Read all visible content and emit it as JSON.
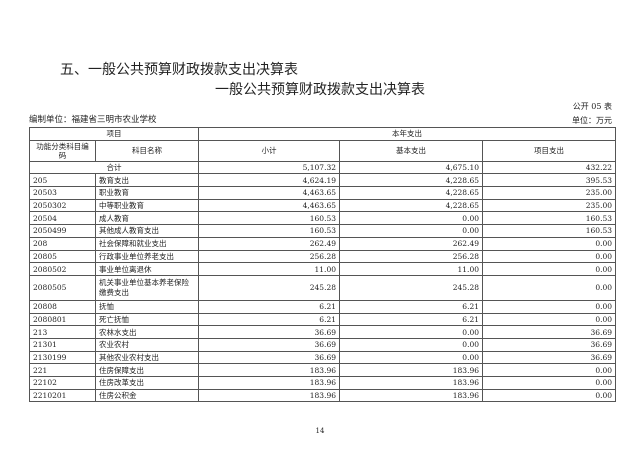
{
  "section_title": "五、一般公共预算财政拨款支出决算表",
  "table_title": "一般公共预算财政拨款支出决算表",
  "form_no": "公开 05 表",
  "org": "编制单位：福建省三明市农业学校",
  "unit": "单位：万元",
  "header": {
    "item": "项目",
    "current_year": "本年支出",
    "code": "功能分类科目编码",
    "name": "科目名称",
    "subtotal": "小计",
    "basic": "基本支出",
    "project": "项目支出"
  },
  "total": {
    "label": "合计",
    "subtotal": "5,107.32",
    "basic": "4,675.10",
    "project": "432.22"
  },
  "rows": [
    {
      "code": "205",
      "name": "教育支出",
      "subtotal": "4,624.19",
      "basic": "4,228.65",
      "project": "395.53"
    },
    {
      "code": "20503",
      "name": "职业教育",
      "subtotal": "4,463.65",
      "basic": "4,228.65",
      "project": "235.00"
    },
    {
      "code": "2050302",
      "name": "中等职业教育",
      "subtotal": "4,463.65",
      "basic": "4,228.65",
      "project": "235.00"
    },
    {
      "code": "20504",
      "name": "成人教育",
      "subtotal": "160.53",
      "basic": "0.00",
      "project": "160.53"
    },
    {
      "code": "2050499",
      "name": "其他成人教育支出",
      "subtotal": "160.53",
      "basic": "0.00",
      "project": "160.53"
    },
    {
      "code": "208",
      "name": "社会保障和就业支出",
      "subtotal": "262.49",
      "basic": "262.49",
      "project": "0.00"
    },
    {
      "code": "20805",
      "name": "行政事业单位养老支出",
      "subtotal": "256.28",
      "basic": "256.28",
      "project": "0.00"
    },
    {
      "code": "2080502",
      "name": "事业单位离退休",
      "subtotal": "11.00",
      "basic": "11.00",
      "project": "0.00"
    },
    {
      "code": "2080505",
      "name": "机关事业单位基本养老保险缴费支出",
      "subtotal": "245.28",
      "basic": "245.28",
      "project": "0.00"
    },
    {
      "code": "20808",
      "name": "抚恤",
      "subtotal": "6.21",
      "basic": "6.21",
      "project": "0.00"
    },
    {
      "code": "2080801",
      "name": "死亡抚恤",
      "subtotal": "6.21",
      "basic": "6.21",
      "project": "0.00"
    },
    {
      "code": "213",
      "name": "农林水支出",
      "subtotal": "36.69",
      "basic": "0.00",
      "project": "36.69"
    },
    {
      "code": "21301",
      "name": "农业农村",
      "subtotal": "36.69",
      "basic": "0.00",
      "project": "36.69"
    },
    {
      "code": "2130199",
      "name": "其他农业农村支出",
      "subtotal": "36.69",
      "basic": "0.00",
      "project": "36.69"
    },
    {
      "code": "221",
      "name": "住房保障支出",
      "subtotal": "183.96",
      "basic": "183.96",
      "project": "0.00"
    },
    {
      "code": "22102",
      "name": "住房改革支出",
      "subtotal": "183.96",
      "basic": "183.96",
      "project": "0.00"
    },
    {
      "code": "2210201",
      "name": "住房公积金",
      "subtotal": "183.96",
      "basic": "183.96",
      "project": "0.00"
    }
  ],
  "page_number": "14"
}
